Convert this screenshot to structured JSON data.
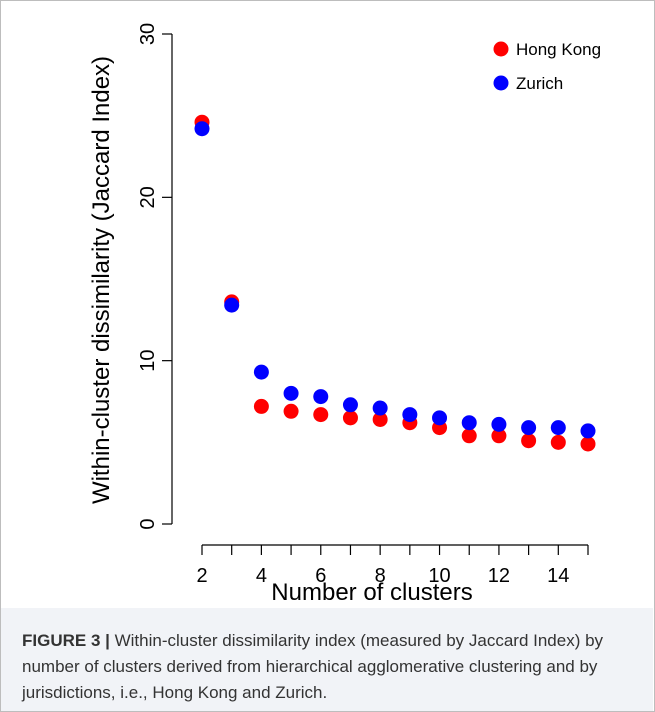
{
  "chart_data": {
    "type": "scatter",
    "xlabel": "Number of clusters",
    "ylabel": "Within-cluster dissimilarity (Jaccard Index)",
    "xlim": [
      1.5,
      15.4
    ],
    "ylim": [
      0,
      30
    ],
    "x_ticks": [
      2,
      4,
      6,
      8,
      10,
      12,
      14
    ],
    "x_minor_ticks": [
      3,
      5,
      7,
      9,
      11,
      13,
      15
    ],
    "y_ticks": [
      0,
      10,
      20,
      30
    ],
    "grid": false,
    "legend_position": "top-right",
    "x": [
      2,
      3,
      4,
      5,
      6,
      7,
      8,
      9,
      10,
      11,
      12,
      13,
      14,
      15
    ],
    "series": [
      {
        "name": "Hong Kong",
        "color": "#ff0000",
        "values": [
          24.6,
          13.6,
          7.2,
          6.9,
          6.7,
          6.5,
          6.4,
          6.2,
          5.9,
          5.4,
          5.4,
          5.1,
          5.0,
          4.9
        ]
      },
      {
        "name": "Zurich",
        "color": "#0000ff",
        "values": [
          24.2,
          13.4,
          9.3,
          8.0,
          7.8,
          7.3,
          7.1,
          6.7,
          6.5,
          6.2,
          6.1,
          5.9,
          5.9,
          5.7
        ]
      }
    ]
  },
  "caption": {
    "label": "FIGURE 3 |",
    "text": " Within-cluster dissimilarity index (measured by Jaccard Index) by number of clusters derived from hierarchical agglomerative clustering and by jurisdictions, i.e., Hong Kong and Zurich."
  }
}
